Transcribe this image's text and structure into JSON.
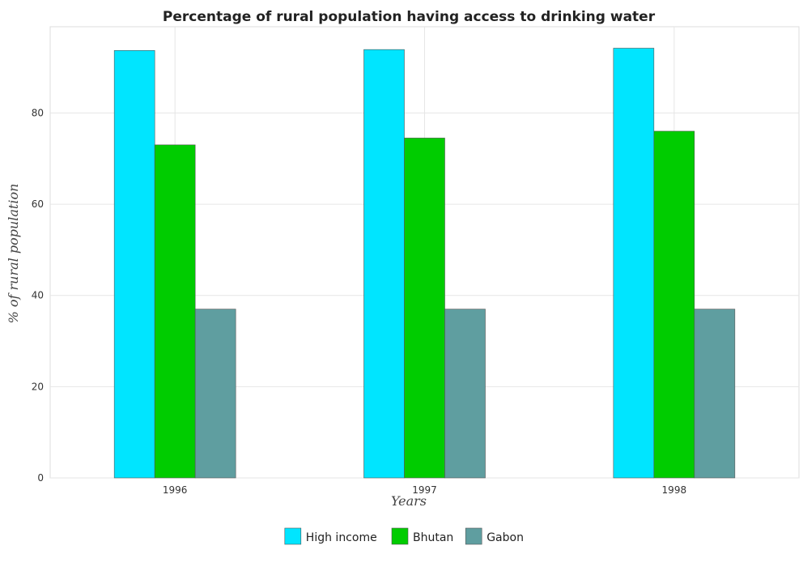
{
  "chart_data": {
    "type": "bar",
    "title": "Percentage of rural population having access to drinking water",
    "xlabel": "Years",
    "ylabel": "% of rural population",
    "categories": [
      "1996",
      "1997",
      "1998"
    ],
    "series": [
      {
        "name": "High income",
        "color": "#00e5ff",
        "values": [
          93.7,
          93.9,
          94.2
        ]
      },
      {
        "name": "Bhutan",
        "color": "#00cc00",
        "values": [
          73.0,
          74.5,
          76.0
        ]
      },
      {
        "name": "Gabon",
        "color": "#5f9ea0",
        "values": [
          37.0,
          37.0,
          37.0
        ]
      }
    ],
    "ylim": [
      0,
      98.9
    ],
    "yticks": [
      0,
      20,
      40,
      60,
      80
    ],
    "grid": true,
    "legend_position": "bottom-center"
  }
}
